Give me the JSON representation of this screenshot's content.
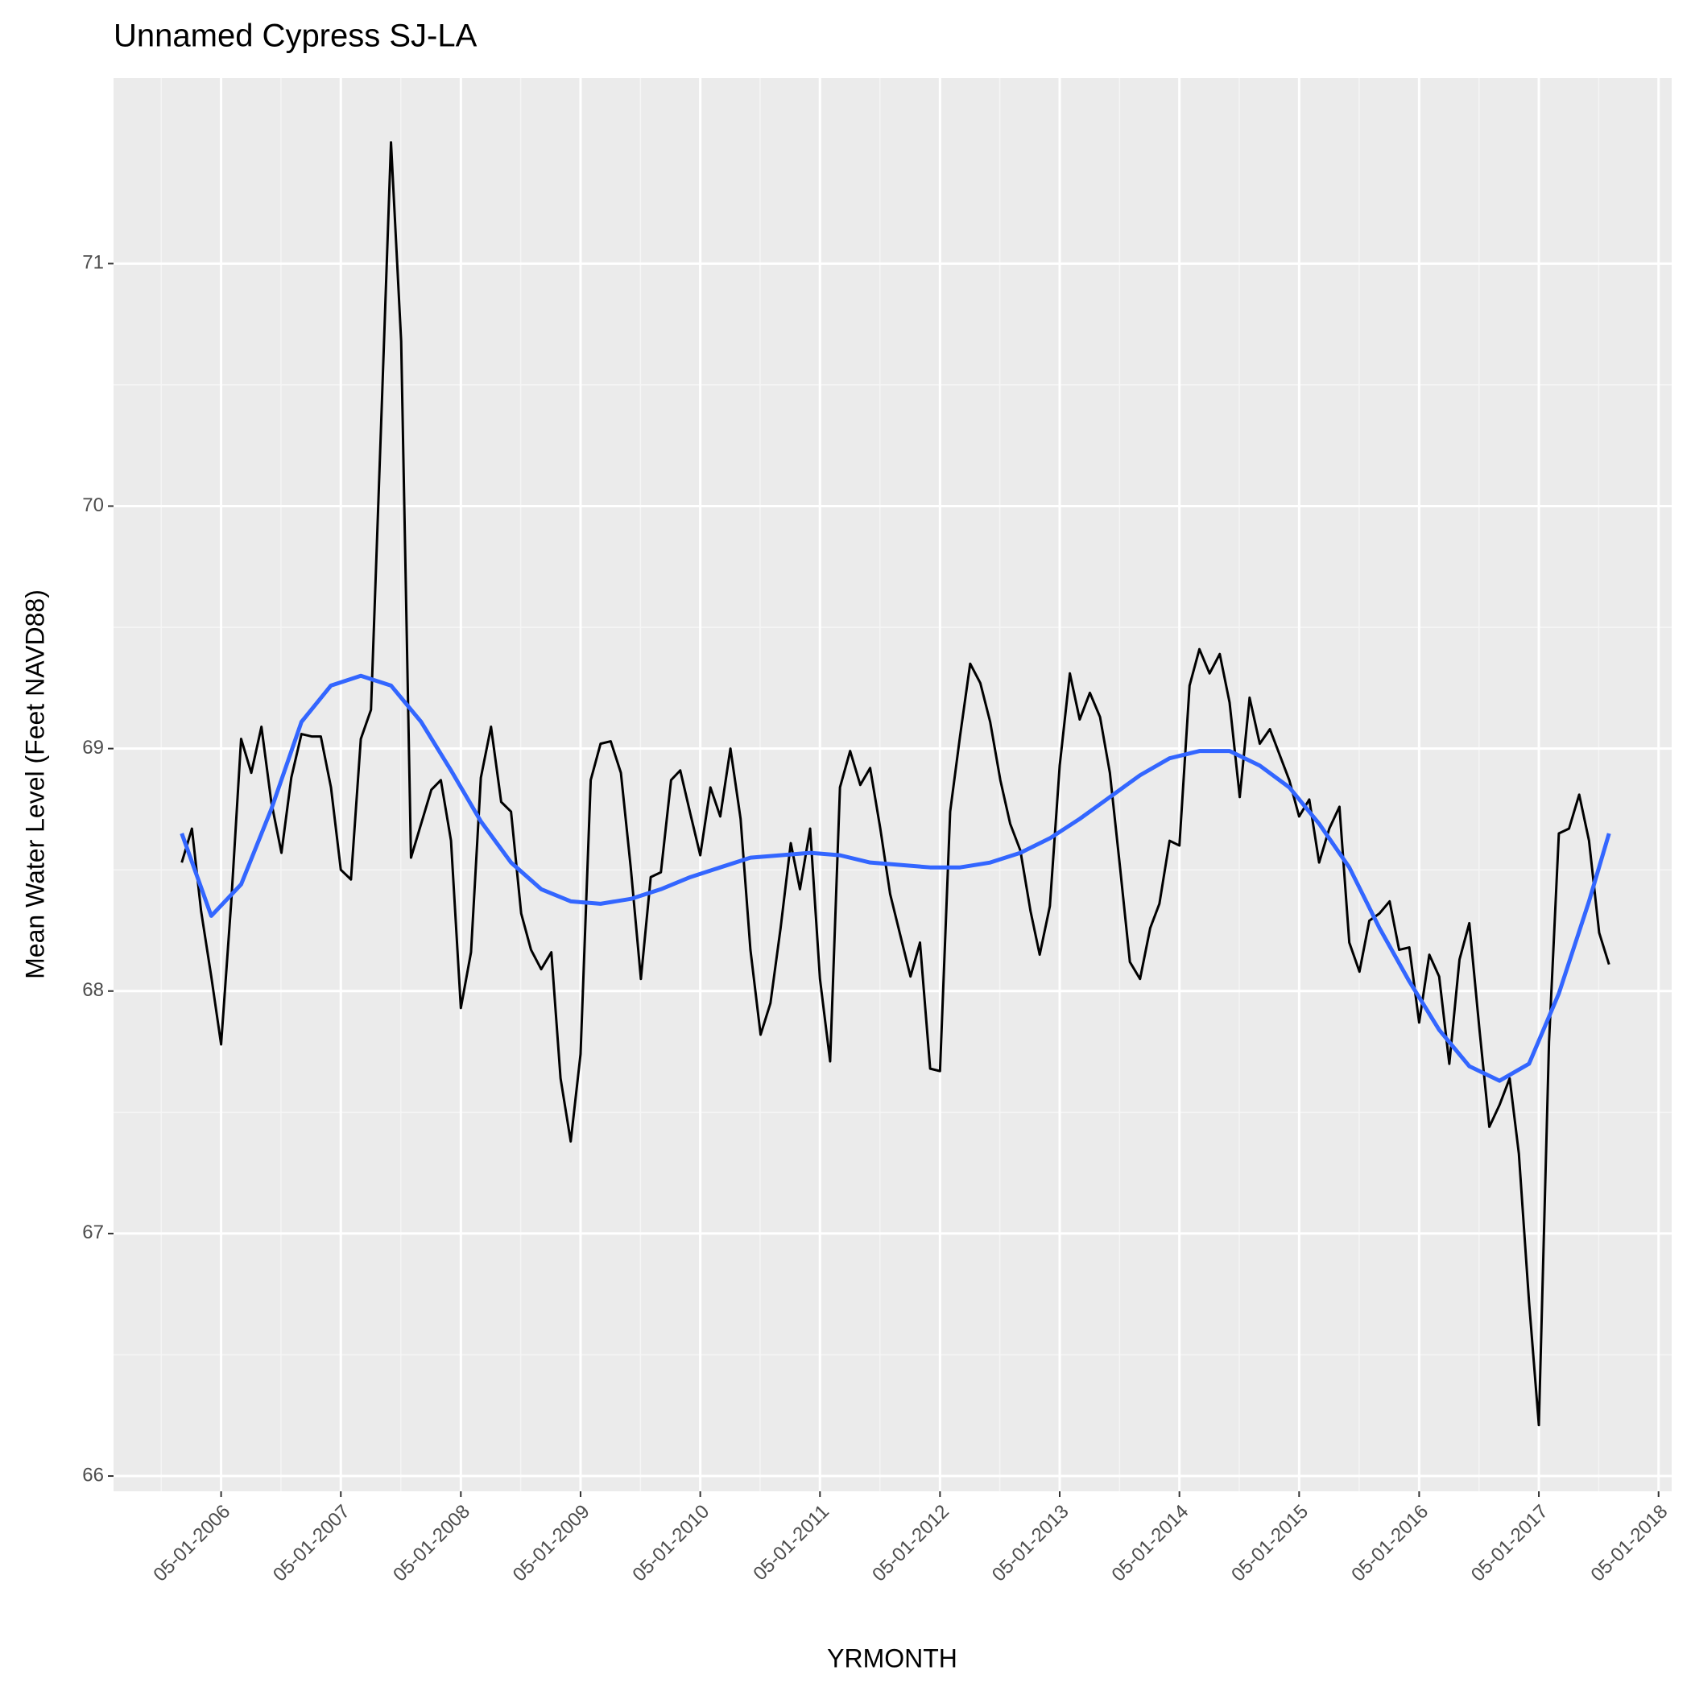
{
  "chart_data": {
    "type": "line",
    "title": "Unnamed Cypress SJ-LA",
    "x_label": "YRMONTH",
    "y_label": "Mean Water Level (Feet NAVD88)",
    "x": [
      "2006-01-01",
      "2006-02-01",
      "2006-03-01",
      "2006-04-01",
      "2006-05-01",
      "2006-06-01",
      "2006-07-01",
      "2006-08-01",
      "2006-09-01",
      "2006-10-01",
      "2006-11-01",
      "2006-12-01",
      "2007-01-01",
      "2007-02-01",
      "2007-03-01",
      "2007-04-01",
      "2007-05-01",
      "2007-06-01",
      "2007-07-01",
      "2007-08-01",
      "2007-09-01",
      "2007-10-01",
      "2007-11-01",
      "2007-12-01",
      "2008-01-01",
      "2008-02-01",
      "2008-03-01",
      "2008-04-01",
      "2008-05-01",
      "2008-06-01",
      "2008-07-01",
      "2008-08-01",
      "2008-09-01",
      "2008-10-01",
      "2008-11-01",
      "2008-12-01",
      "2009-01-01",
      "2009-02-01",
      "2009-03-01",
      "2009-04-01",
      "2009-05-01",
      "2009-06-01",
      "2009-07-01",
      "2009-08-01",
      "2009-09-01",
      "2009-10-01",
      "2009-11-01",
      "2009-12-01",
      "2010-01-01",
      "2010-02-01",
      "2010-03-01",
      "2010-04-01",
      "2010-05-01",
      "2010-06-01",
      "2010-07-01",
      "2010-08-01",
      "2010-09-01",
      "2010-10-01",
      "2010-11-01",
      "2010-12-01",
      "2011-01-01",
      "2011-02-01",
      "2011-03-01",
      "2011-04-01",
      "2011-05-01",
      "2011-06-01",
      "2011-07-01",
      "2011-08-01",
      "2011-09-01",
      "2011-10-01",
      "2011-11-01",
      "2011-12-01",
      "2012-01-01",
      "2012-02-01",
      "2012-03-01",
      "2012-04-01",
      "2012-05-01",
      "2012-06-01",
      "2012-07-01",
      "2012-08-01",
      "2012-09-01",
      "2012-10-01",
      "2012-11-01",
      "2012-12-01",
      "2013-01-01",
      "2013-02-01",
      "2013-03-01",
      "2013-04-01",
      "2013-05-01",
      "2013-06-01",
      "2013-07-01",
      "2013-08-01",
      "2013-09-01",
      "2013-10-01",
      "2013-11-01",
      "2013-12-01",
      "2014-01-01",
      "2014-02-01",
      "2014-03-01",
      "2014-04-01",
      "2014-05-01",
      "2014-06-01",
      "2014-07-01",
      "2014-08-01",
      "2014-09-01",
      "2014-10-01",
      "2014-11-01",
      "2014-12-01",
      "2015-01-01",
      "2015-02-01",
      "2015-03-01",
      "2015-04-01",
      "2015-05-01",
      "2015-06-01",
      "2015-07-01",
      "2015-08-01",
      "2015-09-01",
      "2015-10-01",
      "2015-11-01",
      "2015-12-01",
      "2016-01-01",
      "2016-02-01",
      "2016-03-01",
      "2016-04-01",
      "2016-05-01",
      "2016-06-01",
      "2016-07-01",
      "2016-08-01",
      "2016-09-01",
      "2016-10-01",
      "2016-11-01",
      "2016-12-01",
      "2017-01-01",
      "2017-02-01",
      "2017-03-01",
      "2017-04-01",
      "2017-05-01",
      "2017-06-01",
      "2017-07-01",
      "2017-08-01",
      "2017-09-01",
      "2017-10-01",
      "2017-11-01",
      "2017-12-01"
    ],
    "series": [
      {
        "color": "#000000",
        "values": [
          68.53,
          68.67,
          68.33,
          68.06,
          67.78,
          68.37,
          69.04,
          68.9,
          69.09,
          68.78,
          68.57,
          68.88,
          69.06,
          69.05,
          69.05,
          68.84,
          68.5,
          68.46,
          69.04,
          69.16,
          70.34,
          71.5,
          70.68,
          68.55,
          68.69,
          68.83,
          68.87,
          68.62,
          67.93,
          68.16,
          68.88,
          69.09,
          68.78,
          68.74,
          68.32,
          68.17,
          68.09,
          68.16,
          67.64,
          67.38,
          67.74,
          68.87,
          69.02,
          69.03,
          68.9,
          68.51,
          68.05,
          68.47,
          68.49,
          68.87,
          68.91,
          68.73,
          68.56,
          68.84,
          68.72,
          69.0,
          68.71,
          68.17,
          67.82,
          67.95,
          68.26,
          68.61,
          68.42,
          68.67,
          68.05,
          67.71,
          68.84,
          68.99,
          68.85,
          68.92,
          68.67,
          68.4,
          68.23,
          68.06,
          68.2,
          67.68,
          67.67,
          68.74,
          69.05,
          69.35,
          69.27,
          69.11,
          68.87,
          68.69,
          68.58,
          68.33,
          68.15,
          68.35,
          68.93,
          69.31,
          69.12,
          69.23,
          69.13,
          68.9,
          68.51,
          68.12,
          68.05,
          68.26,
          68.36,
          68.62,
          68.6,
          69.26,
          69.41,
          69.31,
          69.39,
          69.19,
          68.8,
          69.21,
          69.02,
          69.08,
          68.98,
          68.87,
          68.72,
          68.79,
          68.53,
          68.67,
          68.76,
          68.2,
          68.08,
          68.29,
          68.32,
          68.37,
          68.17,
          68.18,
          67.87,
          68.15,
          68.06,
          67.7,
          68.13,
          68.28,
          67.84,
          67.44,
          67.53,
          67.64,
          67.33,
          66.72,
          66.21,
          67.79,
          68.65,
          68.67,
          68.81,
          68.62,
          68.24,
          68.11
        ]
      }
    ],
    "smooth": {
      "color": "#3366ff",
      "x": [
        "2006-01-01",
        "2006-04-01",
        "2006-07-01",
        "2006-10-01",
        "2007-01-01",
        "2007-04-01",
        "2007-07-01",
        "2007-10-01",
        "2008-01-01",
        "2008-04-01",
        "2008-07-01",
        "2008-10-01",
        "2009-01-01",
        "2009-04-01",
        "2009-07-01",
        "2009-10-01",
        "2010-01-01",
        "2010-04-01",
        "2010-07-01",
        "2010-10-01",
        "2011-01-01",
        "2011-04-01",
        "2011-07-01",
        "2011-10-01",
        "2012-01-01",
        "2012-04-01",
        "2012-07-01",
        "2012-10-01",
        "2013-01-01",
        "2013-04-01",
        "2013-07-01",
        "2013-10-01",
        "2014-01-01",
        "2014-04-01",
        "2014-07-01",
        "2014-10-01",
        "2015-01-01",
        "2015-04-01",
        "2015-07-01",
        "2015-10-01",
        "2016-01-01",
        "2016-04-01",
        "2016-07-01",
        "2016-10-01",
        "2017-01-01",
        "2017-04-01",
        "2017-07-01",
        "2017-10-01",
        "2017-12-01"
      ],
      "values": [
        68.65,
        68.31,
        68.44,
        68.75,
        69.11,
        69.26,
        69.3,
        69.26,
        69.11,
        68.91,
        68.7,
        68.53,
        68.42,
        68.37,
        68.36,
        68.38,
        68.42,
        68.47,
        68.51,
        68.55,
        68.56,
        68.57,
        68.56,
        68.53,
        68.52,
        68.51,
        68.51,
        68.53,
        68.57,
        68.63,
        68.71,
        68.8,
        68.89,
        68.96,
        68.99,
        68.99,
        68.93,
        68.84,
        68.69,
        68.51,
        68.26,
        68.04,
        67.84,
        67.69,
        67.63,
        67.7,
        67.99,
        68.37,
        68.65
      ]
    },
    "xlim": [
      "2005-06-07",
      "2018-06-10"
    ],
    "xticks": [
      {
        "value": "2006-05-01",
        "label": "05-01-2006"
      },
      {
        "value": "2007-05-01",
        "label": "05-01-2007"
      },
      {
        "value": "2008-05-01",
        "label": "05-01-2008"
      },
      {
        "value": "2009-05-01",
        "label": "05-01-2009"
      },
      {
        "value": "2010-05-01",
        "label": "05-01-2010"
      },
      {
        "value": "2011-05-01",
        "label": "05-01-2011"
      },
      {
        "value": "2012-05-01",
        "label": "05-01-2012"
      },
      {
        "value": "2013-05-01",
        "label": "05-01-2013"
      },
      {
        "value": "2014-05-01",
        "label": "05-01-2014"
      },
      {
        "value": "2015-05-01",
        "label": "05-01-2015"
      },
      {
        "value": "2016-05-01",
        "label": "05-01-2016"
      },
      {
        "value": "2017-05-01",
        "label": "05-01-2017"
      },
      {
        "value": "2018-05-01",
        "label": "05-01-2018"
      }
    ],
    "ylim": [
      65.937,
      71.765
    ],
    "yticks": [
      66,
      67,
      68,
      69,
      70,
      71
    ],
    "grid": true
  }
}
